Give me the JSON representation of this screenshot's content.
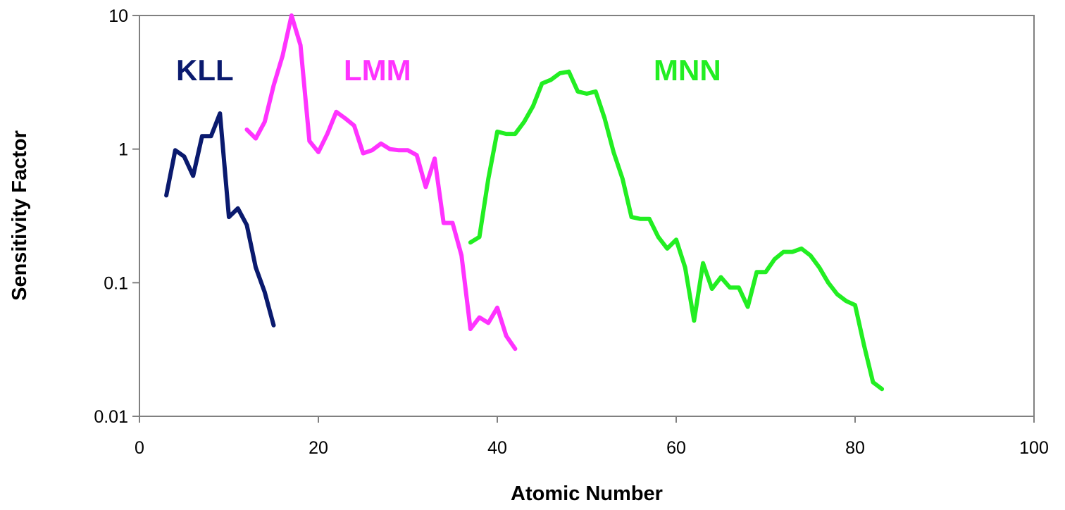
{
  "chart_data": {
    "type": "line",
    "xlabel": "Atomic Number",
    "ylabel": "Sensitivity Factor",
    "xlim": [
      0,
      100
    ],
    "ylim": [
      0.01,
      10
    ],
    "yscale": "log",
    "grid": false,
    "legend": "none",
    "xticks": [
      "0",
      "20",
      "40",
      "60",
      "80",
      "100"
    ],
    "yticks": [
      "0.01",
      "0.1",
      "1",
      "10"
    ],
    "series": [
      {
        "name": "KLL",
        "color": "#0a1a6e",
        "x": [
          3,
          4,
          5,
          6,
          7,
          8,
          9,
          10,
          11,
          12,
          13,
          14,
          15
        ],
        "y": [
          0.45,
          0.98,
          0.88,
          0.63,
          1.25,
          1.25,
          1.85,
          0.31,
          0.36,
          0.27,
          0.13,
          0.085,
          0.048
        ]
      },
      {
        "name": "LMM",
        "color": "#ff33ff",
        "x": [
          12,
          13,
          14,
          15,
          16,
          17,
          18,
          19,
          20,
          21,
          22,
          23,
          24,
          25,
          26,
          27,
          28,
          29,
          30,
          31,
          32,
          33,
          34,
          35,
          36,
          37,
          38,
          39,
          40,
          41,
          42
        ],
        "y": [
          1.4,
          1.2,
          1.6,
          3.0,
          5.0,
          10.0,
          6.0,
          1.15,
          0.95,
          1.3,
          1.9,
          1.7,
          1.5,
          0.93,
          0.98,
          1.1,
          1.0,
          0.98,
          0.98,
          0.9,
          0.52,
          0.85,
          0.28,
          0.28,
          0.16,
          0.045,
          0.055,
          0.05,
          0.065,
          0.04,
          0.032
        ]
      },
      {
        "name": "MNN",
        "color": "#22ee22",
        "x": [
          37,
          38,
          39,
          40,
          41,
          42,
          43,
          44,
          45,
          46,
          47,
          48,
          49,
          50,
          51,
          52,
          53,
          54,
          55,
          56,
          57,
          58,
          59,
          60,
          61,
          62,
          63,
          64,
          65,
          66,
          67,
          68,
          69,
          70,
          71,
          72,
          73,
          74,
          75,
          76,
          77,
          78,
          79,
          80,
          81,
          82,
          83
        ],
        "y": [
          0.2,
          0.22,
          0.6,
          1.35,
          1.3,
          1.3,
          1.6,
          2.1,
          3.1,
          3.3,
          3.7,
          3.8,
          2.7,
          2.6,
          2.7,
          1.7,
          0.95,
          0.6,
          0.31,
          0.3,
          0.3,
          0.22,
          0.18,
          0.21,
          0.13,
          0.052,
          0.14,
          0.09,
          0.11,
          0.092,
          0.092,
          0.066,
          0.12,
          0.12,
          0.15,
          0.17,
          0.17,
          0.18,
          0.16,
          0.13,
          0.1,
          0.082,
          0.073,
          0.068,
          0.034,
          0.018,
          0.016
        ]
      }
    ]
  }
}
